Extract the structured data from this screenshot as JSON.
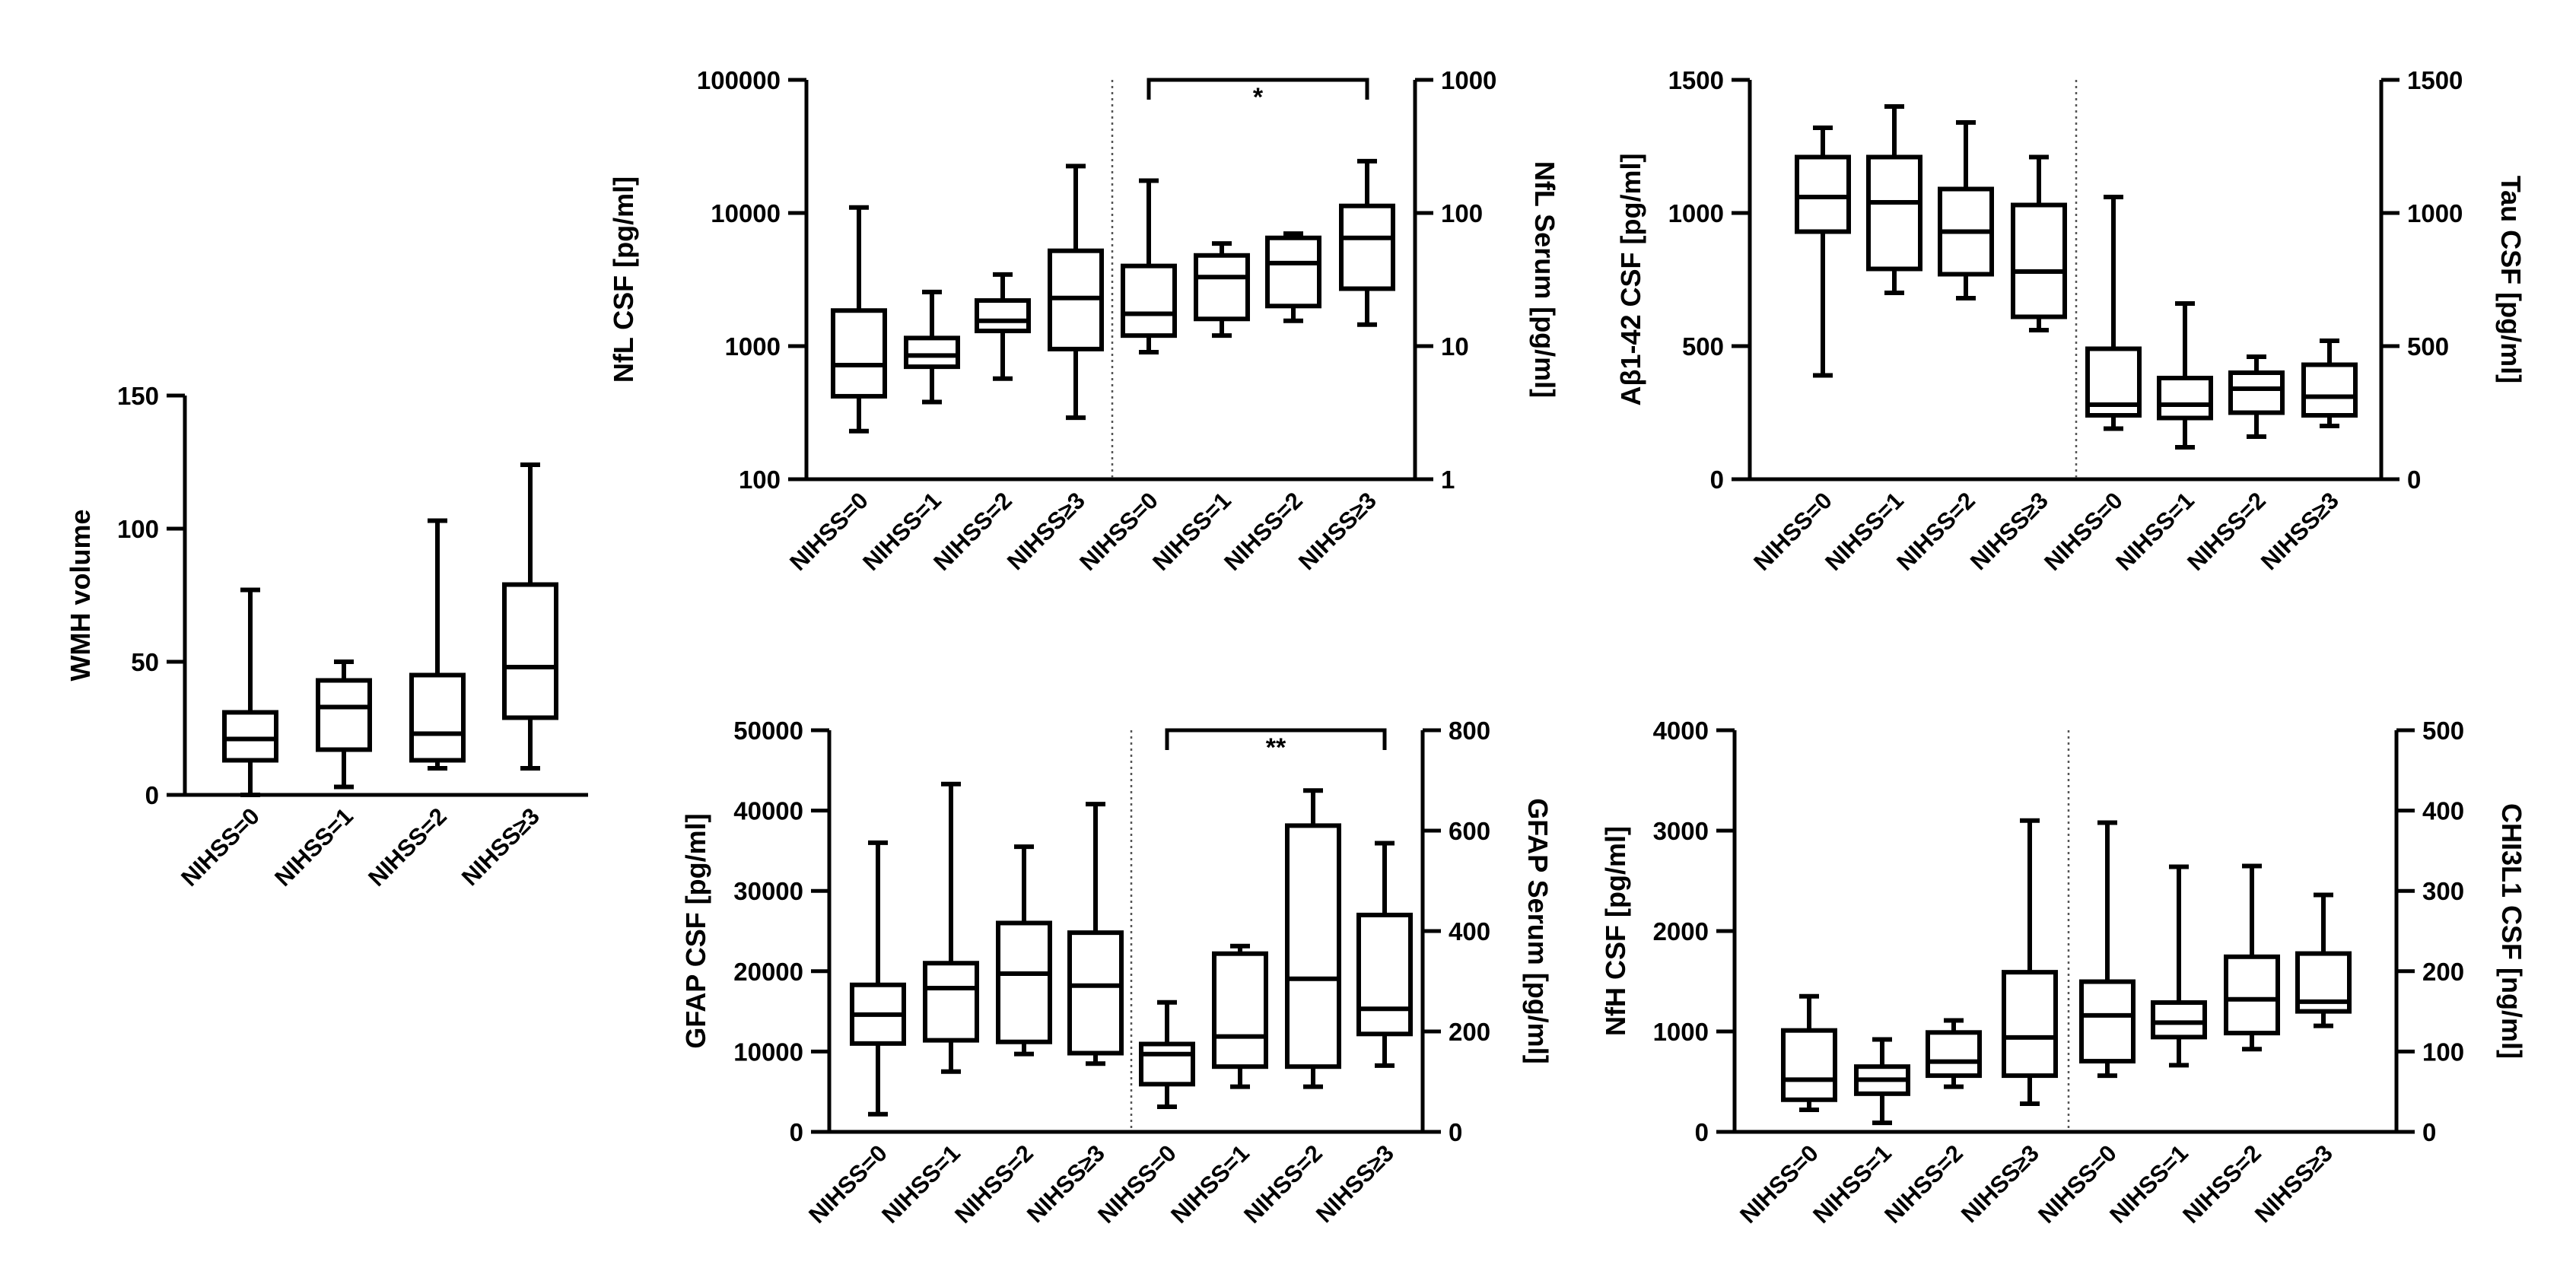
{
  "chart_data": [
    {
      "type": "boxplot",
      "id": "wmh",
      "categories": [
        "NIHSS=0",
        "NIHSS=1",
        "NIHSS=2",
        "NIHSS≥3"
      ],
      "ylabel": "WMH volume",
      "ylim": [
        0,
        150
      ],
      "yscale": "linear",
      "yticks": [
        0,
        50,
        100,
        150
      ],
      "ytick_labels": [
        "0",
        "50",
        "100",
        "150"
      ],
      "series": [
        {
          "name": "WMH volume",
          "axis": "left",
          "boxes": [
            {
              "min": 0,
              "q1": 13,
              "median": 21,
              "q3": 31,
              "max": 77
            },
            {
              "min": 3,
              "q1": 17,
              "median": 33,
              "q3": 43,
              "max": 50
            },
            {
              "min": 10,
              "q1": 13,
              "median": 23,
              "q3": 45,
              "max": 103
            },
            {
              "min": 10,
              "q1": 29,
              "median": 48,
              "q3": 79,
              "max": 124
            }
          ]
        }
      ]
    },
    {
      "type": "boxplot",
      "id": "nfl",
      "categories": [
        "NIHSS=0",
        "NIHSS=1",
        "NIHSS=2",
        "NIHSS≥3"
      ],
      "ylabel": "NfL CSF [pg/ml]",
      "y2label": "NfL Serum [pg/ml]",
      "ylim": [
        100,
        100000
      ],
      "y2lim": [
        1,
        1000
      ],
      "yscale": "log",
      "yticks": [
        100,
        1000,
        10000,
        100000
      ],
      "ytick_labels": [
        "100",
        "1000",
        "10000",
        "100000"
      ],
      "y2ticks": [
        1,
        10,
        100,
        1000
      ],
      "y2tick_labels": [
        "1",
        "10",
        "100",
        "1000"
      ],
      "series": [
        {
          "name": "NfL CSF",
          "axis": "left",
          "boxes": [
            {
              "min": 230,
              "q1": 420,
              "median": 720,
              "q3": 1850,
              "max": 11000
            },
            {
              "min": 380,
              "q1": 700,
              "median": 850,
              "q3": 1150,
              "max": 2550
            },
            {
              "min": 570,
              "q1": 1300,
              "median": 1550,
              "q3": 2200,
              "max": 3450
            },
            {
              "min": 290,
              "q1": 950,
              "median": 2300,
              "q3": 5200,
              "max": 22500
            }
          ]
        },
        {
          "name": "NfL Serum",
          "axis": "right",
          "boxes": [
            {
              "min": 9,
              "q1": 12,
              "median": 17.5,
              "q3": 40,
              "max": 175
            },
            {
              "min": 12,
              "q1": 16,
              "median": 33,
              "q3": 48,
              "max": 59
            },
            {
              "min": 15.5,
              "q1": 20,
              "median": 42,
              "q3": 65,
              "max": 70
            },
            {
              "min": 14.5,
              "q1": 27,
              "median": 65,
              "q3": 113,
              "max": 245
            }
          ]
        }
      ],
      "significance": [
        {
          "label": "*",
          "from": "NIHSS=0",
          "to": "NIHSS≥3",
          "axis": "right"
        }
      ]
    },
    {
      "type": "boxplot",
      "id": "abeta-tau",
      "categories": [
        "NIHSS=0",
        "NIHSS=1",
        "NIHSS=2",
        "NIHSS≥3"
      ],
      "ylabel": "Aβ1-42 CSF [pg/ml]",
      "y2label": "Tau CSF [pg/ml]",
      "ylim": [
        0,
        1500
      ],
      "y2lim": [
        0,
        1500
      ],
      "yscale": "linear",
      "yticks": [
        0,
        500,
        1000,
        1500
      ],
      "ytick_labels": [
        "0",
        "500",
        "1000",
        "1500"
      ],
      "y2ticks": [
        0,
        500,
        1000,
        1500
      ],
      "y2tick_labels": [
        "0",
        "500",
        "1000",
        "1500"
      ],
      "series": [
        {
          "name": "Aβ1-42 CSF",
          "axis": "left",
          "boxes": [
            {
              "min": 390,
              "q1": 930,
              "median": 1060,
              "q3": 1210,
              "max": 1320
            },
            {
              "min": 700,
              "q1": 790,
              "median": 1040,
              "q3": 1210,
              "max": 1400
            },
            {
              "min": 680,
              "q1": 770,
              "median": 930,
              "q3": 1090,
              "max": 1340
            },
            {
              "min": 560,
              "q1": 610,
              "median": 780,
              "q3": 1030,
              "max": 1210
            }
          ]
        },
        {
          "name": "Tau CSF",
          "axis": "right",
          "boxes": [
            {
              "min": 190,
              "q1": 240,
              "median": 280,
              "q3": 490,
              "max": 1060
            },
            {
              "min": 120,
              "q1": 230,
              "median": 280,
              "q3": 380,
              "max": 660
            },
            {
              "min": 160,
              "q1": 250,
              "median": 340,
              "q3": 400,
              "max": 460
            },
            {
              "min": 200,
              "q1": 240,
              "median": 310,
              "q3": 430,
              "max": 520
            }
          ]
        }
      ]
    },
    {
      "type": "boxplot",
      "id": "gfap",
      "categories": [
        "NIHSS=0",
        "NIHSS=1",
        "NIHSS=2",
        "NIHSS≥3"
      ],
      "ylabel": "GFAP CSF [pg/ml]",
      "y2label": "GFAP Serum [pg/ml]",
      "ylim": [
        0,
        50000
      ],
      "y2lim": [
        0,
        800
      ],
      "yscale": "linear",
      "yticks": [
        0,
        10000,
        20000,
        30000,
        40000,
        50000
      ],
      "ytick_labels": [
        "0",
        "10000",
        "20000",
        "30000",
        "40000",
        "50000"
      ],
      "y2ticks": [
        0,
        200,
        400,
        600,
        800
      ],
      "y2tick_labels": [
        "0",
        "200",
        "400",
        "600",
        "800"
      ],
      "series": [
        {
          "name": "GFAP CSF",
          "axis": "left",
          "boxes": [
            {
              "min": 2200,
              "q1": 11000,
              "median": 14600,
              "q3": 18300,
              "max": 36000
            },
            {
              "min": 7500,
              "q1": 11400,
              "median": 17900,
              "q3": 21000,
              "max": 43300
            },
            {
              "min": 9700,
              "q1": 11200,
              "median": 19700,
              "q3": 26000,
              "max": 35500
            },
            {
              "min": 8500,
              "q1": 9800,
              "median": 18200,
              "q3": 24800,
              "max": 40800
            }
          ]
        },
        {
          "name": "GFAP Serum",
          "axis": "right",
          "boxes": [
            {
              "min": 50,
              "q1": 95,
              "median": 155,
              "q3": 175,
              "max": 258
            },
            {
              "min": 90,
              "q1": 130,
              "median": 190,
              "q3": 355,
              "max": 370
            },
            {
              "min": 90,
              "q1": 130,
              "median": 305,
              "q3": 610,
              "max": 680
            },
            {
              "min": 132,
              "q1": 195,
              "median": 245,
              "q3": 432,
              "max": 575
            }
          ]
        }
      ],
      "significance": [
        {
          "label": "**",
          "from": "NIHSS=0",
          "to": "NIHSS≥3",
          "axis": "right"
        }
      ]
    },
    {
      "type": "boxplot",
      "id": "nfh-chi3l1",
      "categories": [
        "NIHSS=0",
        "NIHSS=1",
        "NIHSS=2",
        "NIHSS≥3"
      ],
      "ylabel": "NfH CSF [pg/ml]",
      "y2label": "CHI3L1 CSF [ng/ml]",
      "ylim": [
        0,
        4000
      ],
      "y2lim": [
        0,
        500
      ],
      "yscale": "linear",
      "yticks": [
        0,
        1000,
        2000,
        3000,
        4000
      ],
      "ytick_labels": [
        "0",
        "1000",
        "2000",
        "3000",
        "4000"
      ],
      "y2ticks": [
        0,
        100,
        200,
        300,
        400,
        500
      ],
      "y2tick_labels": [
        "0",
        "100",
        "200",
        "300",
        "400",
        "500"
      ],
      "series": [
        {
          "name": "NfH CSF",
          "axis": "left",
          "boxes": [
            {
              "min": 220,
              "q1": 320,
              "median": 520,
              "q3": 1010,
              "max": 1350
            },
            {
              "min": 90,
              "q1": 380,
              "median": 520,
              "q3": 650,
              "max": 920
            },
            {
              "min": 450,
              "q1": 560,
              "median": 700,
              "q3": 990,
              "max": 1110
            },
            {
              "min": 280,
              "q1": 560,
              "median": 940,
              "q3": 1590,
              "max": 3100
            }
          ]
        },
        {
          "name": "CHI3L1 CSF",
          "axis": "right",
          "boxes": [
            {
              "min": 70,
              "q1": 88,
              "median": 145,
              "q3": 187,
              "max": 385
            },
            {
              "min": 83,
              "q1": 118,
              "median": 136,
              "q3": 161,
              "max": 330
            },
            {
              "min": 103,
              "q1": 123,
              "median": 165,
              "q3": 218,
              "max": 331
            },
            {
              "min": 132,
              "q1": 150,
              "median": 162,
              "q3": 222,
              "max": 295
            }
          ]
        }
      ]
    }
  ]
}
